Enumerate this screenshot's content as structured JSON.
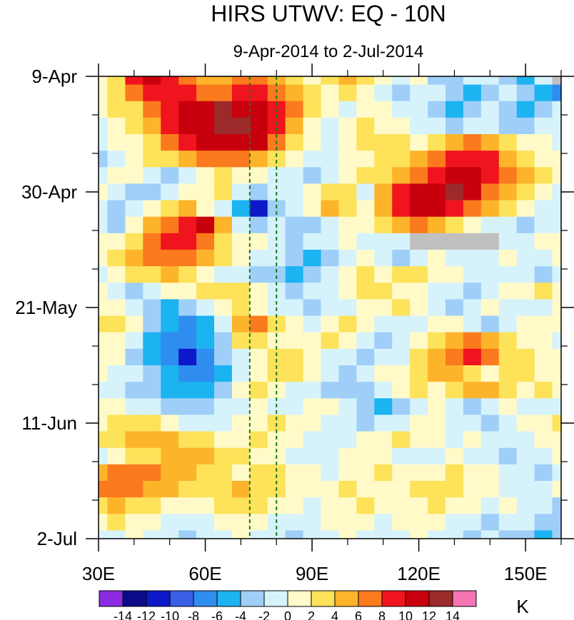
{
  "chart_data": {
    "type": "heatmap",
    "title": "HIRS UTWV: EQ - 10N",
    "subtitle": "9-Apr-2014 to 2-Jul-2014",
    "xlabel": "",
    "ylabel": "",
    "colorbar_unit": "K",
    "xlim": [
      30,
      160
    ],
    "ylim_days": [
      0,
      84
    ],
    "x_ticks": [
      {
        "value": 30,
        "label": "30E"
      },
      {
        "value": 60,
        "label": "60E"
      },
      {
        "value": 90,
        "label": "90E"
      },
      {
        "value": 120,
        "label": "120E"
      },
      {
        "value": 150,
        "label": "150E"
      }
    ],
    "x_minor_ticks": [
      40,
      50,
      70,
      80,
      100,
      110,
      130,
      140,
      160
    ],
    "y_ticks": [
      {
        "day": 0,
        "label": "9-Apr"
      },
      {
        "day": 21,
        "label": "30-Apr"
      },
      {
        "day": 42,
        "label": "21-May"
      },
      {
        "day": 63,
        "label": "11-Jun"
      },
      {
        "day": 84,
        "label": "2-Jul"
      }
    ],
    "y_minor_ticks": [
      7,
      14,
      28,
      35,
      49,
      56,
      70,
      77
    ],
    "dashed_lines_lon": [
      72.5,
      80
    ],
    "dashed_line_color": "#1a7a1a",
    "levels": [
      -14,
      -12,
      -10,
      -8,
      -6,
      -4,
      -2,
      0,
      2,
      4,
      6,
      8,
      10,
      12,
      14
    ],
    "level_labels": [
      "-14",
      "-12",
      "-10",
      "-8",
      "-6",
      "-4",
      "-2",
      "0",
      "2",
      "4",
      "6",
      "8",
      "10",
      "12",
      "14"
    ],
    "colors": [
      "#8a2be2",
      "#0b0b8a",
      "#0d18c8",
      "#3a60e8",
      "#2f8df0",
      "#1bb3f0",
      "#9fcff8",
      "#d6f3fc",
      "#fffac8",
      "#fde25a",
      "#fdb42a",
      "#fb7a1e",
      "#f0141e",
      "#c8000e",
      "#9c2a2a",
      "#f574b4"
    ],
    "missing_color": "#c0c0c0",
    "grid": {
      "lon_start": 30,
      "lon_step": 5,
      "n_lon": 27,
      "day_start": 0,
      "day_step": 3,
      "n_day": 29
    },
    "values": [
      [
        0,
        3,
        9,
        11,
        8,
        6,
        4,
        5,
        6,
        7,
        4,
        2,
        1,
        3,
        4,
        2,
        0,
        -2,
        1,
        -3,
        -4,
        -2,
        -1,
        -3,
        -5,
        -2,
        null
      ],
      [
        1,
        2,
        6,
        8,
        9,
        8,
        6,
        7,
        8,
        9,
        7,
        5,
        3,
        1,
        2,
        0,
        -1,
        -3,
        -1,
        -2,
        -4,
        -6,
        -3,
        -2,
        -4,
        -6,
        -7
      ],
      [
        0,
        2,
        3,
        6,
        9,
        10,
        11,
        12,
        11,
        10,
        8,
        6,
        2,
        0,
        -1,
        1,
        0,
        -2,
        -1,
        -3,
        -5,
        -3,
        -2,
        -4,
        -6,
        -3,
        -2
      ],
      [
        -1,
        1,
        2,
        5,
        8,
        10,
        11,
        12,
        12,
        11,
        9,
        5,
        1,
        -1,
        0,
        2,
        1,
        0,
        -2,
        -1,
        -3,
        -2,
        -1,
        -3,
        -4,
        -2,
        -1
      ],
      [
        -2,
        0,
        1,
        3,
        6,
        8,
        10,
        11,
        11,
        10,
        7,
        3,
        0,
        -2,
        1,
        2,
        3,
        2,
        1,
        3,
        5,
        6,
        4,
        2,
        1,
        0,
        -1
      ],
      [
        -3,
        -1,
        0,
        2,
        3,
        5,
        6,
        7,
        6,
        5,
        3,
        1,
        -1,
        -2,
        0,
        1,
        2,
        3,
        4,
        6,
        8,
        9,
        8,
        5,
        3,
        1,
        0
      ],
      [
        -1,
        0,
        1,
        -2,
        -4,
        -1,
        1,
        2,
        1,
        0,
        -1,
        -2,
        -3,
        -1,
        1,
        2,
        3,
        5,
        7,
        9,
        10,
        11,
        9,
        6,
        4,
        2,
        1
      ],
      [
        0,
        -2,
        -3,
        -4,
        -2,
        0,
        1,
        3,
        -1,
        -3,
        -1,
        -2,
        1,
        3,
        2,
        -1,
        4,
        8,
        10,
        11,
        12,
        10,
        7,
        4,
        2,
        0,
        -1
      ],
      [
        -2,
        -3,
        -1,
        1,
        3,
        4,
        1,
        -2,
        -6,
        -12,
        -4,
        -2,
        0,
        4,
        2,
        0,
        5,
        9,
        10,
        11,
        9,
        6,
        4,
        3,
        1,
        -1,
        -2
      ],
      [
        -1,
        -3,
        1,
        4,
        6,
        8,
        10,
        4,
        -1,
        -3,
        -2,
        -4,
        -3,
        -1,
        0,
        1,
        3,
        5,
        6,
        4,
        2,
        0,
        -1,
        -2,
        -3,
        -2,
        -1
      ],
      [
        0,
        1,
        3,
        6,
        8,
        9,
        7,
        3,
        1,
        0,
        -2,
        -3,
        -2,
        -1,
        0,
        -1,
        -2,
        -1,
        null,
        null,
        null,
        null,
        null,
        -2,
        -1,
        0,
        1
      ],
      [
        1,
        2,
        4,
        6,
        7,
        6,
        4,
        2,
        0,
        -1,
        -2,
        -4,
        -5,
        -3,
        -1,
        0,
        -2,
        -3,
        -1,
        0,
        -1,
        -2,
        -1,
        0,
        -2,
        -1,
        0
      ],
      [
        -1,
        0,
        2,
        3,
        4,
        3,
        1,
        -1,
        -2,
        -3,
        -4,
        -5,
        -3,
        -2,
        1,
        2,
        1,
        3,
        2,
        1,
        0,
        -1,
        -2,
        -1,
        -2,
        -3,
        -2
      ],
      [
        0,
        -1,
        -3,
        -2,
        0,
        1,
        2,
        3,
        2,
        0,
        -2,
        -3,
        -2,
        -1,
        0,
        2,
        3,
        1,
        0,
        -1,
        -2,
        -3,
        -1,
        0,
        1,
        2,
        1
      ],
      [
        1,
        0,
        -2,
        -4,
        -5,
        -3,
        -1,
        1,
        2,
        0,
        -1,
        -2,
        -3,
        -2,
        -1,
        0,
        1,
        2,
        0,
        -2,
        -3,
        -1,
        0,
        -1,
        -2,
        -1,
        0
      ],
      [
        2,
        3,
        1,
        -3,
        -6,
        -7,
        -5,
        -2,
        4,
        6,
        2,
        0,
        -1,
        1,
        2,
        0,
        -1,
        -2,
        -1,
        0,
        1,
        -2,
        -3,
        -1,
        0,
        1,
        0
      ],
      [
        0,
        1,
        -2,
        -5,
        -7,
        -8,
        -6,
        -3,
        2,
        3,
        1,
        0,
        1,
        2,
        0,
        -2,
        -3,
        -1,
        0,
        2,
        4,
        6,
        5,
        3,
        1,
        0,
        -1
      ],
      [
        1,
        0,
        -3,
        -5,
        -8,
        -11,
        -7,
        -4,
        -1,
        0,
        2,
        3,
        1,
        -1,
        -2,
        -3,
        -2,
        -1,
        2,
        5,
        7,
        8,
        6,
        3,
        2,
        1,
        0
      ],
      [
        0,
        -1,
        -2,
        -4,
        -6,
        -8,
        -7,
        -5,
        -2,
        1,
        3,
        2,
        0,
        -2,
        -3,
        -2,
        0,
        1,
        3,
        5,
        4,
        2,
        1,
        2,
        3,
        1,
        0
      ],
      [
        -1,
        -2,
        -3,
        -3,
        -5,
        -6,
        -5,
        -3,
        0,
        2,
        1,
        -1,
        -2,
        -3,
        -4,
        -3,
        -1,
        1,
        2,
        1,
        3,
        5,
        4,
        2,
        1,
        2,
        1
      ],
      [
        0,
        1,
        -1,
        -2,
        -3,
        -4,
        -3,
        -2,
        -1,
        0,
        -1,
        -2,
        0,
        1,
        -2,
        -4,
        -5,
        -3,
        -1,
        0,
        -2,
        -3,
        -1,
        0,
        -1,
        -2,
        -1
      ],
      [
        1,
        2,
        3,
        2,
        1,
        -1,
        -2,
        -1,
        0,
        1,
        2,
        1,
        0,
        -1,
        -2,
        -3,
        -2,
        -1,
        0,
        1,
        -1,
        -2,
        -3,
        -1,
        0,
        1,
        2
      ],
      [
        2,
        3,
        4,
        5,
        4,
        3,
        2,
        1,
        1,
        2,
        1,
        0,
        -1,
        -2,
        -1,
        0,
        1,
        2,
        1,
        0,
        -1,
        0,
        -1,
        -2,
        -1,
        0,
        1
      ],
      [
        -1,
        0,
        2,
        3,
        4,
        5,
        4,
        3,
        2,
        1,
        0,
        -1,
        -2,
        -1,
        0,
        1,
        0,
        -1,
        -2,
        -1,
        0,
        -1,
        -2,
        -3,
        -2,
        -1,
        0
      ],
      [
        4,
        6,
        7,
        6,
        5,
        4,
        3,
        2,
        1,
        2,
        3,
        1,
        0,
        -1,
        0,
        1,
        2,
        1,
        0,
        1,
        2,
        1,
        0,
        -1,
        -2,
        -3,
        -2
      ],
      [
        6,
        7,
        6,
        5,
        4,
        3,
        2,
        3,
        4,
        3,
        2,
        1,
        0,
        1,
        2,
        1,
        0,
        1,
        2,
        3,
        2,
        1,
        0,
        -1,
        -2,
        -1,
        0
      ],
      [
        3,
        4,
        3,
        2,
        1,
        0,
        1,
        2,
        3,
        2,
        1,
        0,
        -1,
        0,
        1,
        2,
        1,
        0,
        1,
        2,
        1,
        0,
        -1,
        0,
        -1,
        -2,
        -3
      ],
      [
        1,
        2,
        1,
        0,
        -1,
        -2,
        -1,
        0,
        1,
        0,
        -1,
        -2,
        -1,
        0,
        1,
        0,
        -1,
        0,
        1,
        0,
        -1,
        -2,
        -3,
        -2,
        -1,
        -4,
        -3
      ],
      [
        -2,
        -1,
        0,
        -1,
        -2,
        -3,
        -2,
        -1,
        0,
        -1,
        -2,
        -3,
        -2,
        -1,
        0,
        -1,
        -2,
        -1,
        0,
        -1,
        -2,
        -3,
        -2,
        -3,
        -4,
        -5,
        -3
      ]
    ]
  }
}
